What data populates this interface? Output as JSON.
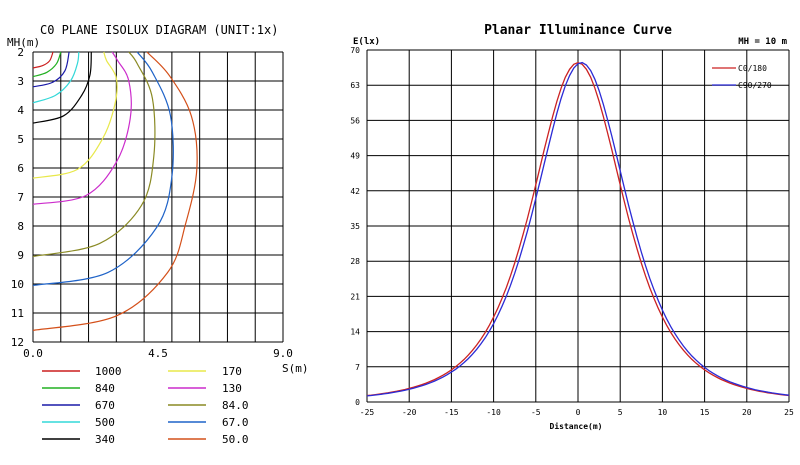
{
  "colors": {
    "1000": "#cc1f1f",
    "840": "#22b022",
    "670": "#1a1aa8",
    "500": "#33d8d8",
    "340": "#000000",
    "170": "#e8e84a",
    "130": "#cc2ccc",
    "84.0": "#8a8a24",
    "67.0": "#1f63c8",
    "50.0": "#d4501a",
    "c0": "#cc2222",
    "c90": "#2b2bd6"
  },
  "chart_data": [
    {
      "type": "line",
      "title": "C0 PLANE ISOLUX DIAGRAM (UNIT:1x)",
      "xlabel": "S(m)",
      "ylabel": "MH(m)",
      "xlim": [
        0,
        9
      ],
      "ylim": [
        2,
        12
      ],
      "y_inverted": true,
      "x_ticks": [
        "0.0",
        "4.5",
        "9.0"
      ],
      "y_ticks": [
        "2",
        "3",
        "4",
        "5",
        "6",
        "7",
        "8",
        "9",
        "10",
        "11",
        "12"
      ],
      "grid": true,
      "legend_placement": "bottom",
      "series": [
        {
          "name": "1000",
          "points": [
            [
              0,
              2.55
            ],
            [
              0.35,
              2.47
            ],
            [
              0.6,
              2.3
            ],
            [
              0.72,
              2.0
            ]
          ]
        },
        {
          "name": "840",
          "points": [
            [
              0,
              2.85
            ],
            [
              0.5,
              2.7
            ],
            [
              0.85,
              2.4
            ],
            [
              1.0,
              2.0
            ]
          ]
        },
        {
          "name": "670",
          "points": [
            [
              0,
              3.2
            ],
            [
              0.7,
              3.05
            ],
            [
              1.15,
              2.65
            ],
            [
              1.3,
              2.0
            ]
          ]
        },
        {
          "name": "500",
          "points": [
            [
              0,
              3.75
            ],
            [
              0.8,
              3.5
            ],
            [
              1.35,
              3.0
            ],
            [
              1.6,
              2.4
            ],
            [
              1.65,
              2.0
            ]
          ]
        },
        {
          "name": "340",
          "points": [
            [
              0,
              4.45
            ],
            [
              1.1,
              4.2
            ],
            [
              1.75,
              3.5
            ],
            [
              2.05,
              2.8
            ],
            [
              2.1,
              2.0
            ]
          ]
        },
        {
          "name": "170",
          "points": [
            [
              0,
              6.35
            ],
            [
              1.6,
              6.05
            ],
            [
              2.5,
              5.0
            ],
            [
              2.95,
              3.8
            ],
            [
              3.0,
              2.9
            ],
            [
              2.65,
              2.3
            ],
            [
              2.55,
              2.0
            ]
          ]
        },
        {
          "name": "130",
          "points": [
            [
              0,
              7.25
            ],
            [
              1.9,
              6.95
            ],
            [
              3.0,
              5.8
            ],
            [
              3.5,
              4.3
            ],
            [
              3.45,
              3.0
            ],
            [
              3.05,
              2.3
            ],
            [
              2.85,
              2.0
            ]
          ]
        },
        {
          "name": "84.0",
          "points": [
            [
              0,
              9.05
            ],
            [
              2.4,
              8.6
            ],
            [
              3.9,
              7.3
            ],
            [
              4.35,
              5.6
            ],
            [
              4.3,
              3.6
            ],
            [
              3.75,
              2.4
            ],
            [
              3.45,
              2.0
            ]
          ]
        },
        {
          "name": "67.0",
          "points": [
            [
              0,
              10.05
            ],
            [
              2.7,
              9.6
            ],
            [
              4.45,
              8.05
            ],
            [
              5.0,
              6.3
            ],
            [
              4.95,
              4.2
            ],
            [
              4.3,
              2.7
            ],
            [
              3.75,
              2.0
            ]
          ]
        },
        {
          "name": "50.0",
          "points": [
            [
              0,
              11.6
            ],
            [
              3.0,
              11.1
            ],
            [
              4.85,
              9.6
            ],
            [
              5.5,
              7.9
            ],
            [
              5.9,
              6.0
            ],
            [
              5.7,
              4.2
            ],
            [
              4.9,
              2.8
            ],
            [
              4.1,
              2.0
            ]
          ]
        }
      ]
    },
    {
      "type": "line",
      "title": "Planar Illuminance Curve",
      "subtitle": "MH = 10 m",
      "xlabel": "Distance(m)",
      "ylabel": "E(lx)",
      "xlim": [
        -25,
        25
      ],
      "ylim": [
        0,
        70
      ],
      "x_ticks": [
        "-25",
        "-20",
        "-15",
        "-10",
        "-5",
        "0",
        "5",
        "10",
        "15",
        "20",
        "25"
      ],
      "y_ticks": [
        "0",
        "7",
        "14",
        "21",
        "28",
        "35",
        "42",
        "49",
        "56",
        "63",
        "70"
      ],
      "grid": true,
      "legend_placement": "top-right",
      "series": [
        {
          "name": "C0/180",
          "peak": 67.5,
          "peak_x": 0.0
        },
        {
          "name": "C90/270",
          "peak": 67.5,
          "peak_x": 0.4
        }
      ]
    }
  ],
  "legend_left": {
    "col1": [
      "1000",
      "840",
      "670",
      "500",
      "340"
    ],
    "col2": [
      "170",
      "130",
      "84.0",
      "67.0",
      "50.0"
    ]
  }
}
